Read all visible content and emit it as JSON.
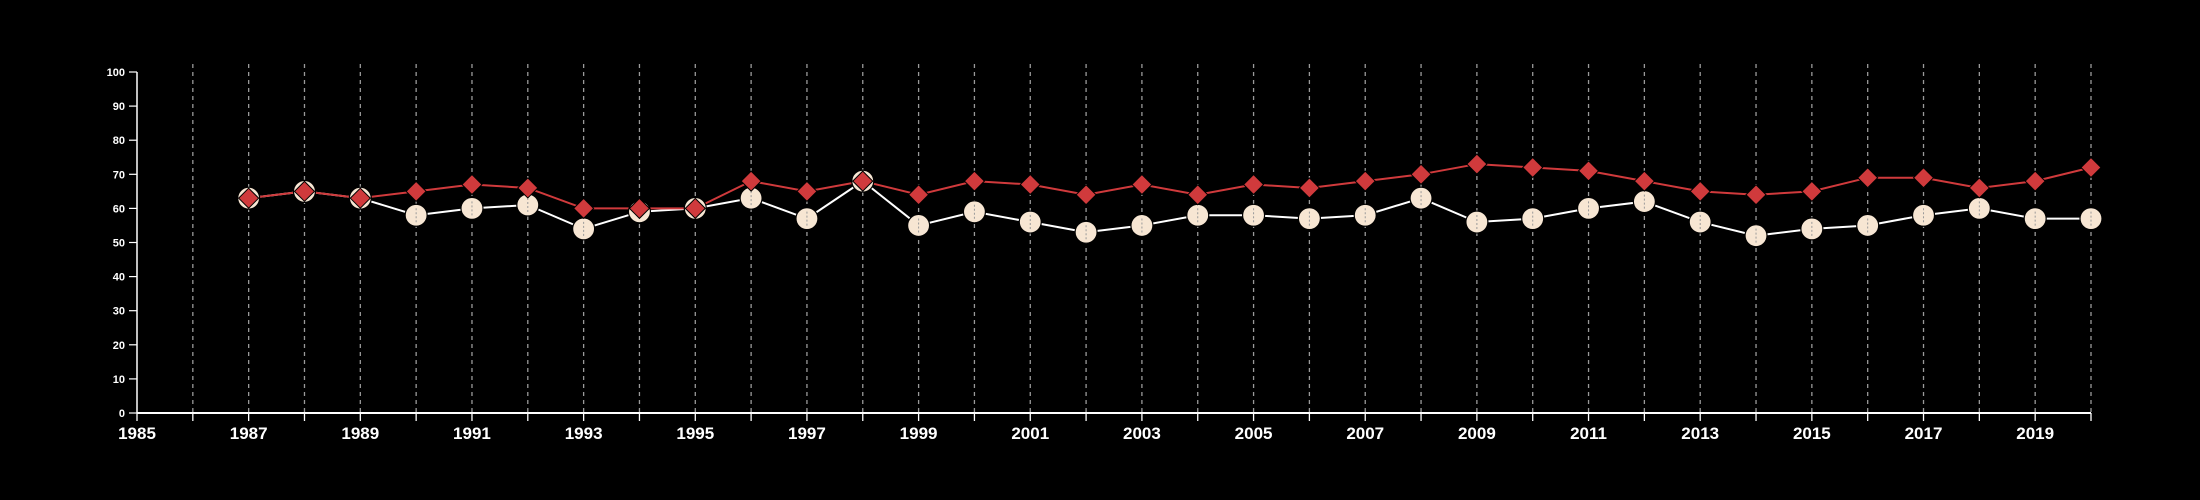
{
  "chart_data": {
    "type": "line",
    "title": "",
    "xlabel": "",
    "ylabel": "",
    "xlim": [
      1985,
      2020
    ],
    "ylim": [
      0,
      100
    ],
    "y_ticks": [
      "0",
      "10",
      "20",
      "30",
      "40",
      "50",
      "60",
      "70",
      "80",
      "90",
      "100"
    ],
    "x_tick_labels": [
      "1985",
      "1987",
      "1989",
      "1991",
      "1993",
      "1995",
      "1997",
      "1999",
      "2001",
      "2003",
      "2005",
      "2007",
      "2009",
      "2011",
      "2013",
      "2015",
      "2017",
      "2019"
    ],
    "vertical_gridlines": true,
    "background_color": "#000000",
    "x": [
      1987,
      1988,
      1989,
      1990,
      1991,
      1992,
      1993,
      1994,
      1995,
      1996,
      1997,
      1998,
      1999,
      2000,
      2001,
      2002,
      2003,
      2004,
      2005,
      2006,
      2007,
      2008,
      2009,
      2010,
      2011,
      2012,
      2013,
      2014,
      2015,
      2016,
      2017,
      2018,
      2019,
      2020
    ],
    "series": [
      {
        "marker": "diamond",
        "color": "#d03a3c",
        "line_color": "#d03a3c",
        "values": [
          63,
          65,
          63,
          65,
          67,
          66,
          60,
          60,
          60,
          68,
          65,
          68,
          64,
          68,
          67,
          64,
          67,
          64,
          67,
          66,
          68,
          70,
          73,
          72,
          71,
          68,
          65,
          64,
          65,
          69,
          69,
          66,
          68,
          72
        ]
      },
      {
        "marker": "circle",
        "color": "#f7e6d3",
        "line_color": "#ffffff",
        "values": [
          63,
          65,
          63,
          58,
          60,
          61,
          54,
          59,
          60,
          63,
          57,
          68,
          55,
          59,
          56,
          53,
          55,
          58,
          58,
          57,
          58,
          63,
          56,
          57,
          60,
          62,
          56,
          52,
          54,
          55,
          58,
          60,
          57,
          57
        ]
      }
    ]
  }
}
